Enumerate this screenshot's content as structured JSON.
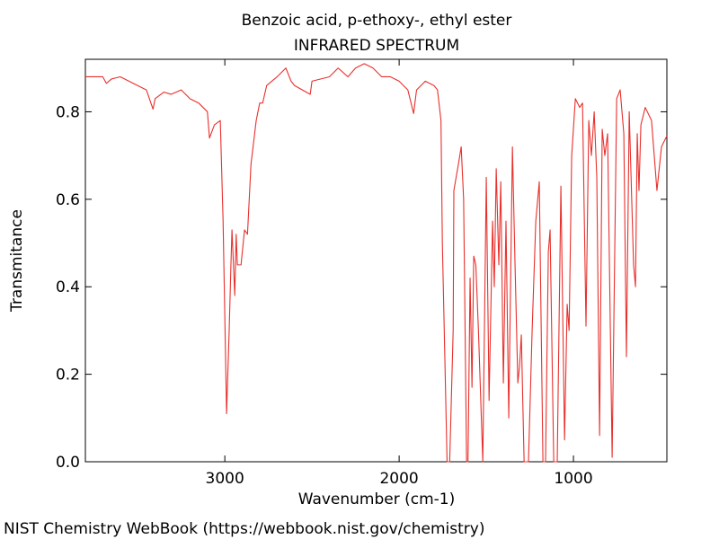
{
  "chart_data": {
    "type": "line",
    "title": "Benzoic acid, p-ethoxy-, ethyl ester",
    "subtitle": "INFRARED SPECTRUM",
    "x_label": "Wavenumber (cm-1)",
    "y_label": "Transmitance",
    "source": "NIST Chemistry WebBook (https://webbook.nist.gov/chemistry)",
    "color": "#e8302c",
    "xlim": [
      3800,
      464
    ],
    "ylim": [
      0,
      0.92
    ],
    "xticks": [
      3000,
      2000,
      1000
    ],
    "yticks": [
      {
        "value": 0,
        "label": "0.0"
      },
      0.2,
      0.4,
      0.6,
      0.8
    ],
    "x": [
      3800,
      3700,
      3680,
      3650,
      3600,
      3500,
      3450,
      3412,
      3400,
      3350,
      3309,
      3250,
      3200,
      3150,
      3100,
      3088,
      3060,
      3026,
      3010,
      2990,
      2975,
      2965,
      2959,
      2943,
      2935,
      2928,
      2907,
      2887,
      2870,
      2850,
      2820,
      2800,
      2783,
      2760,
      2700,
      2650,
      2620,
      2600,
      2510,
      2500,
      2400,
      2350,
      2294,
      2250,
      2200,
      2150,
      2100,
      2050,
      2000,
      1950,
      1917,
      1900,
      1850,
      1800,
      1780,
      1760,
      1752,
      1725,
      1710,
      1690,
      1686,
      1660,
      1644,
      1630,
      1613,
      1605,
      1593,
      1582,
      1572,
      1560,
      1545,
      1520,
      1500,
      1484,
      1464,
      1454,
      1443,
      1428,
      1417,
      1402,
      1387,
      1371,
      1350,
      1335,
      1319,
      1309,
      1299,
      1283,
      1258,
      1237,
      1216,
      1196,
      1175,
      1160,
      1144,
      1134,
      1113,
      1093,
      1072,
      1051,
      1036,
      1025,
      1010,
      989,
      964,
      948,
      928,
      912,
      897,
      881,
      866,
      850,
      835,
      820,
      804,
      778,
      752,
      732,
      711,
      696,
      680,
      655,
      644,
      634,
      624,
      613,
      588,
      552,
      521,
      495,
      464
    ],
    "values": [
      0.88,
      0.88,
      0.865,
      0.875,
      0.88,
      0.86,
      0.85,
      0.806,
      0.83,
      0.845,
      0.84,
      0.85,
      0.83,
      0.82,
      0.8,
      0.74,
      0.77,
      0.78,
      0.55,
      0.11,
      0.3,
      0.45,
      0.53,
      0.38,
      0.52,
      0.45,
      0.45,
      0.53,
      0.52,
      0.68,
      0.78,
      0.82,
      0.82,
      0.86,
      0.88,
      0.9,
      0.87,
      0.86,
      0.84,
      0.87,
      0.88,
      0.9,
      0.88,
      0.9,
      0.91,
      0.9,
      0.88,
      0.88,
      0.87,
      0.85,
      0.796,
      0.85,
      0.87,
      0.86,
      0.85,
      0.78,
      0.5,
      0.0,
      0.0,
      0.3,
      0.62,
      0.68,
      0.72,
      0.6,
      0.0,
      0.0,
      0.42,
      0.17,
      0.47,
      0.45,
      0.3,
      0.0,
      0.65,
      0.14,
      0.55,
      0.4,
      0.67,
      0.45,
      0.64,
      0.18,
      0.55,
      0.1,
      0.72,
      0.45,
      0.18,
      0.22,
      0.29,
      0.0,
      0.0,
      0.3,
      0.55,
      0.64,
      0.0,
      0.0,
      0.48,
      0.53,
      0.0,
      0.0,
      0.63,
      0.05,
      0.36,
      0.3,
      0.7,
      0.83,
      0.81,
      0.82,
      0.31,
      0.78,
      0.7,
      0.8,
      0.65,
      0.06,
      0.76,
      0.7,
      0.75,
      0.01,
      0.83,
      0.85,
      0.75,
      0.24,
      0.8,
      0.45,
      0.4,
      0.75,
      0.62,
      0.77,
      0.81,
      0.78,
      0.62,
      0.72,
      0.745
    ]
  }
}
